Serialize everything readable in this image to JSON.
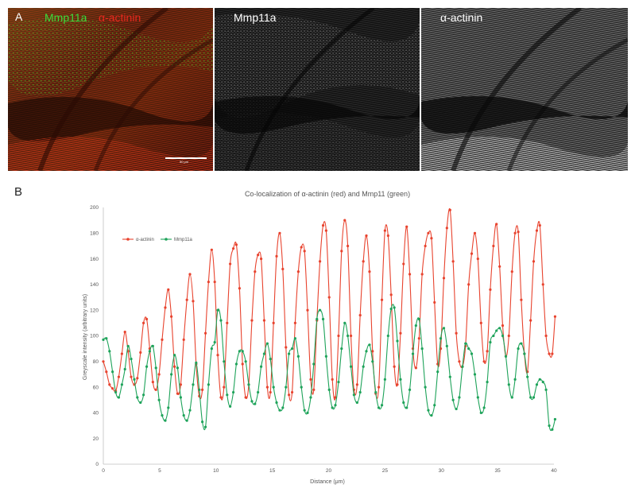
{
  "panels": {
    "a_letter": "A",
    "b_letter": "B",
    "merged": {
      "label_green": "Mmp11a",
      "label_red": "α-actinin",
      "scale_bar": "50 μm"
    },
    "green_channel": {
      "label": "Mmp11a"
    },
    "red_channel": {
      "label": "α-actinin"
    }
  },
  "colors": {
    "actinin": "#e8432e",
    "mmp11a": "#1ea35a",
    "green_text": "#3bdc3b",
    "red_text": "#e8281e",
    "axis": "#bfbfbf"
  },
  "chart_data": {
    "type": "line",
    "title": "Co-localization of α-actinin (red) and Mmp11 (green)",
    "xlabel": "Distance (μm)",
    "ylabel": "Greyscale intensity (arbitrary units)",
    "xlim": [
      0,
      40
    ],
    "ylim": [
      0,
      200
    ],
    "xticks": [
      0,
      5,
      10,
      15,
      20,
      25,
      30,
      35,
      40
    ],
    "yticks": [
      0,
      20,
      40,
      60,
      80,
      100,
      120,
      140,
      160,
      180,
      200
    ],
    "grid": false,
    "legend": "top-left",
    "series": [
      {
        "name": "α-actinin",
        "color": "#e8432e",
        "points": [
          [
            0,
            80
          ],
          [
            0.27,
            72
          ],
          [
            0.55,
            62
          ],
          [
            0.82,
            59
          ],
          [
            1.1,
            57
          ],
          [
            1.37,
            68
          ],
          [
            1.65,
            86
          ],
          [
            1.92,
            103
          ],
          [
            2.2,
            88
          ],
          [
            2.47,
            68
          ],
          [
            2.75,
            62
          ],
          [
            3.02,
            67
          ],
          [
            3.3,
            87
          ],
          [
            3.57,
            110
          ],
          [
            3.85,
            113
          ],
          [
            4.12,
            90
          ],
          [
            4.4,
            64
          ],
          [
            4.67,
            58
          ],
          [
            4.95,
            70
          ],
          [
            5.22,
            97
          ],
          [
            5.5,
            122
          ],
          [
            5.77,
            136
          ],
          [
            6.04,
            115
          ],
          [
            6.32,
            76
          ],
          [
            6.59,
            55
          ],
          [
            6.87,
            62
          ],
          [
            7.14,
            97
          ],
          [
            7.42,
            128
          ],
          [
            7.69,
            148
          ],
          [
            7.97,
            127
          ],
          [
            8.24,
            78
          ],
          [
            8.52,
            53
          ],
          [
            8.79,
            58
          ],
          [
            9.07,
            102
          ],
          [
            9.34,
            142
          ],
          [
            9.62,
            167
          ],
          [
            9.89,
            142
          ],
          [
            10.16,
            85
          ],
          [
            10.44,
            52
          ],
          [
            10.71,
            60
          ],
          [
            10.99,
            110
          ],
          [
            11.26,
            156
          ],
          [
            11.54,
            168
          ],
          [
            11.81,
            171
          ],
          [
            12.09,
            137
          ],
          [
            12.36,
            78
          ],
          [
            12.64,
            52
          ],
          [
            12.91,
            62
          ],
          [
            13.19,
            112
          ],
          [
            13.46,
            150
          ],
          [
            13.73,
            163
          ],
          [
            14.01,
            160
          ],
          [
            14.28,
            112
          ],
          [
            14.56,
            60
          ],
          [
            14.83,
            56
          ],
          [
            15.11,
            110
          ],
          [
            15.38,
            162
          ],
          [
            15.66,
            180
          ],
          [
            15.93,
            152
          ],
          [
            16.21,
            91
          ],
          [
            16.48,
            54
          ],
          [
            16.76,
            56
          ],
          [
            17.03,
            110
          ],
          [
            17.31,
            150
          ],
          [
            17.58,
            169
          ],
          [
            17.86,
            166
          ],
          [
            18.13,
            120
          ],
          [
            18.41,
            66
          ],
          [
            18.68,
            58
          ],
          [
            18.96,
            112
          ],
          [
            19.23,
            158
          ],
          [
            19.51,
            186
          ],
          [
            19.78,
            182
          ],
          [
            20.05,
            130
          ],
          [
            20.33,
            66
          ],
          [
            20.6,
            52
          ],
          [
            20.88,
            100
          ],
          [
            21.15,
            166
          ],
          [
            21.43,
            190
          ],
          [
            21.7,
            170
          ],
          [
            21.98,
            100
          ],
          [
            22.25,
            58
          ],
          [
            22.53,
            62
          ],
          [
            22.8,
            116
          ],
          [
            23.08,
            158
          ],
          [
            23.35,
            178
          ],
          [
            23.63,
            150
          ],
          [
            23.9,
            88
          ],
          [
            24.18,
            55
          ],
          [
            24.45,
            60
          ],
          [
            24.73,
            128
          ],
          [
            25.0,
            182
          ],
          [
            25.28,
            178
          ],
          [
            25.55,
            132
          ],
          [
            25.83,
            76
          ],
          [
            26.1,
            62
          ],
          [
            26.38,
            102
          ],
          [
            26.65,
            156
          ],
          [
            26.93,
            185
          ],
          [
            27.2,
            148
          ],
          [
            27.48,
            90
          ],
          [
            27.75,
            75
          ],
          [
            28.03,
            98
          ],
          [
            28.3,
            148
          ],
          [
            28.58,
            170
          ],
          [
            28.85,
            180
          ],
          [
            29.13,
            176
          ],
          [
            29.4,
            126
          ],
          [
            29.68,
            78
          ],
          [
            29.95,
            90
          ],
          [
            30.23,
            145
          ],
          [
            30.5,
            184
          ],
          [
            30.78,
            198
          ],
          [
            31.05,
            158
          ],
          [
            31.33,
            102
          ],
          [
            31.6,
            80
          ],
          [
            31.88,
            76
          ],
          [
            32.15,
            92
          ],
          [
            32.43,
            140
          ],
          [
            32.7,
            164
          ],
          [
            32.98,
            180
          ],
          [
            33.25,
            160
          ],
          [
            33.53,
            110
          ],
          [
            33.8,
            80
          ],
          [
            34.08,
            88
          ],
          [
            34.35,
            136
          ],
          [
            34.63,
            170
          ],
          [
            34.9,
            187
          ],
          [
            35.18,
            154
          ],
          [
            35.45,
            108
          ],
          [
            35.73,
            84
          ],
          [
            36.0,
            100
          ],
          [
            36.28,
            150
          ],
          [
            36.55,
            180
          ],
          [
            36.83,
            181
          ],
          [
            37.1,
            128
          ],
          [
            37.38,
            86
          ],
          [
            37.65,
            72
          ],
          [
            37.93,
            112
          ],
          [
            38.2,
            158
          ],
          [
            38.48,
            182
          ],
          [
            38.75,
            186
          ],
          [
            39.03,
            140
          ],
          [
            39.3,
            100
          ],
          [
            39.58,
            86
          ],
          [
            39.85,
            86
          ],
          [
            40.1,
            115
          ]
        ]
      },
      {
        "name": "Mmp11a",
        "color": "#1ea35a",
        "points": [
          [
            0,
            97
          ],
          [
            0.27,
            98
          ],
          [
            0.55,
            88
          ],
          [
            0.82,
            72
          ],
          [
            1.1,
            56
          ],
          [
            1.37,
            52
          ],
          [
            1.65,
            62
          ],
          [
            1.92,
            74
          ],
          [
            2.2,
            92
          ],
          [
            2.47,
            82
          ],
          [
            2.75,
            66
          ],
          [
            3.02,
            52
          ],
          [
            3.3,
            48
          ],
          [
            3.57,
            54
          ],
          [
            3.85,
            76
          ],
          [
            4.12,
            88
          ],
          [
            4.4,
            92
          ],
          [
            4.67,
            75
          ],
          [
            4.95,
            50
          ],
          [
            5.22,
            38
          ],
          [
            5.5,
            34
          ],
          [
            5.77,
            44
          ],
          [
            6.04,
            70
          ],
          [
            6.32,
            85
          ],
          [
            6.59,
            75
          ],
          [
            6.87,
            52
          ],
          [
            7.14,
            38
          ],
          [
            7.42,
            34
          ],
          [
            7.69,
            42
          ],
          [
            7.97,
            62
          ],
          [
            8.24,
            79
          ],
          [
            8.52,
            58
          ],
          [
            8.79,
            33
          ],
          [
            9.07,
            29
          ],
          [
            9.34,
            62
          ],
          [
            9.62,
            90
          ],
          [
            9.89,
            95
          ],
          [
            10.16,
            120
          ],
          [
            10.44,
            112
          ],
          [
            10.71,
            80
          ],
          [
            10.99,
            54
          ],
          [
            11.26,
            45
          ],
          [
            11.54,
            56
          ],
          [
            11.81,
            78
          ],
          [
            12.09,
            88
          ],
          [
            12.36,
            88
          ],
          [
            12.64,
            80
          ],
          [
            12.91,
            62
          ],
          [
            13.19,
            49
          ],
          [
            13.46,
            47
          ],
          [
            13.73,
            56
          ],
          [
            14.01,
            76
          ],
          [
            14.28,
            86
          ],
          [
            14.56,
            94
          ],
          [
            14.83,
            82
          ],
          [
            15.11,
            60
          ],
          [
            15.38,
            48
          ],
          [
            15.66,
            42
          ],
          [
            15.93,
            44
          ],
          [
            16.21,
            60
          ],
          [
            16.48,
            86
          ],
          [
            16.76,
            90
          ],
          [
            17.03,
            98
          ],
          [
            17.31,
            84
          ],
          [
            17.58,
            60
          ],
          [
            17.86,
            42
          ],
          [
            18.13,
            40
          ],
          [
            18.41,
            52
          ],
          [
            18.68,
            78
          ],
          [
            18.96,
            113
          ],
          [
            19.23,
            120
          ],
          [
            19.51,
            113
          ],
          [
            19.78,
            84
          ],
          [
            20.05,
            58
          ],
          [
            20.33,
            44
          ],
          [
            20.6,
            46
          ],
          [
            20.88,
            64
          ],
          [
            21.15,
            90
          ],
          [
            21.43,
            110
          ],
          [
            21.7,
            100
          ],
          [
            21.98,
            76
          ],
          [
            22.25,
            54
          ],
          [
            22.53,
            48
          ],
          [
            22.8,
            56
          ],
          [
            23.08,
            76
          ],
          [
            23.35,
            88
          ],
          [
            23.63,
            93
          ],
          [
            23.9,
            80
          ],
          [
            24.18,
            56
          ],
          [
            24.45,
            44
          ],
          [
            24.73,
            46
          ],
          [
            25.0,
            66
          ],
          [
            25.28,
            100
          ],
          [
            25.55,
            121
          ],
          [
            25.83,
            122
          ],
          [
            26.1,
            96
          ],
          [
            26.38,
            66
          ],
          [
            26.65,
            48
          ],
          [
            26.93,
            44
          ],
          [
            27.2,
            58
          ],
          [
            27.48,
            86
          ],
          [
            27.75,
            108
          ],
          [
            28.03,
            113
          ],
          [
            28.3,
            90
          ],
          [
            28.58,
            60
          ],
          [
            28.85,
            42
          ],
          [
            29.13,
            38
          ],
          [
            29.4,
            46
          ],
          [
            29.68,
            72
          ],
          [
            29.95,
            98
          ],
          [
            30.23,
            106
          ],
          [
            30.5,
            92
          ],
          [
            30.78,
            68
          ],
          [
            31.05,
            50
          ],
          [
            31.33,
            43
          ],
          [
            31.6,
            52
          ],
          [
            31.88,
            76
          ],
          [
            32.15,
            94
          ],
          [
            32.43,
            90
          ],
          [
            32.7,
            86
          ],
          [
            32.98,
            70
          ],
          [
            33.25,
            52
          ],
          [
            33.53,
            40
          ],
          [
            33.8,
            44
          ],
          [
            34.08,
            64
          ],
          [
            34.35,
            95
          ],
          [
            34.63,
            100
          ],
          [
            34.9,
            104
          ],
          [
            35.18,
            106
          ],
          [
            35.45,
            100
          ],
          [
            35.73,
            84
          ],
          [
            36.0,
            62
          ],
          [
            36.28,
            52
          ],
          [
            36.55,
            66
          ],
          [
            36.83,
            90
          ],
          [
            37.1,
            94
          ],
          [
            37.38,
            86
          ],
          [
            37.65,
            68
          ],
          [
            37.93,
            52
          ],
          [
            38.2,
            52
          ],
          [
            38.48,
            62
          ],
          [
            38.75,
            66
          ],
          [
            39.03,
            64
          ],
          [
            39.3,
            58
          ],
          [
            39.58,
            30
          ],
          [
            39.85,
            27
          ],
          [
            40.1,
            35
          ]
        ]
      }
    ]
  }
}
